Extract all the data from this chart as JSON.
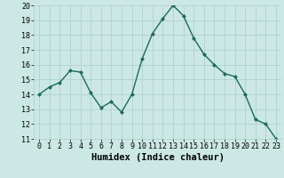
{
  "x": [
    0,
    1,
    2,
    3,
    4,
    5,
    6,
    7,
    8,
    9,
    10,
    11,
    12,
    13,
    14,
    15,
    16,
    17,
    18,
    19,
    20,
    21,
    22,
    23
  ],
  "y": [
    14.0,
    14.5,
    14.8,
    15.6,
    15.5,
    14.1,
    13.1,
    13.5,
    12.8,
    14.0,
    16.4,
    18.1,
    19.1,
    20.0,
    19.3,
    17.8,
    16.7,
    16.0,
    15.4,
    15.2,
    14.0,
    12.3,
    12.0,
    11.0
  ],
  "line_color": "#1a6b5a",
  "marker": "D",
  "marker_size": 2.0,
  "bg_color": "#cce8e4",
  "grid_color": "#aaceca",
  "xlabel": "Humidex (Indice chaleur)",
  "ylim": [
    11,
    20
  ],
  "xlim": [
    -0.5,
    23.5
  ],
  "yticks": [
    11,
    12,
    13,
    14,
    15,
    16,
    17,
    18,
    19,
    20
  ],
  "xticks": [
    0,
    1,
    2,
    3,
    4,
    5,
    6,
    7,
    8,
    9,
    10,
    11,
    12,
    13,
    14,
    15,
    16,
    17,
    18,
    19,
    20,
    21,
    22,
    23
  ],
  "xlabel_fontsize": 7.5,
  "tick_fontsize": 6.0,
  "linewidth": 1.0
}
